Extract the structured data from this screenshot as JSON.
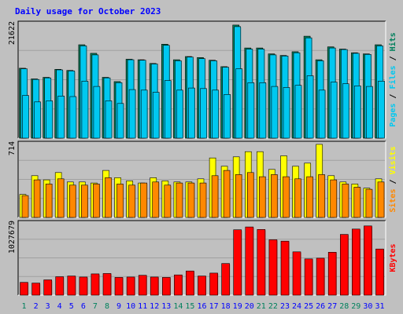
{
  "chart_data": {
    "type": "bar",
    "title": "Daily usage for October 2023",
    "categories": [
      "1",
      "2",
      "3",
      "4",
      "5",
      "6",
      "7",
      "8",
      "9",
      "10",
      "11",
      "12",
      "13",
      "14",
      "15",
      "16",
      "17",
      "18",
      "19",
      "20",
      "21",
      "22",
      "23",
      "24",
      "25",
      "26",
      "27",
      "28",
      "29",
      "30",
      "31"
    ],
    "weekend_days": [
      "1",
      "7",
      "8",
      "14",
      "15",
      "21",
      "22",
      "28",
      "29"
    ],
    "panels": [
      {
        "name": "top",
        "ymax": 21622,
        "ymax_label": "21622",
        "side_labels": [
          "Pages",
          "Files",
          "Hits"
        ],
        "series": [
          {
            "name": "Hits",
            "color": "#00805c",
            "values": [
              13100,
              11100,
              11400,
              12900,
              12700,
              17500,
              15900,
              11400,
              10600,
              14800,
              14700,
              14000,
              17600,
              14700,
              15300,
              15100,
              14600,
              13400,
              21200,
              16900,
              16900,
              15800,
              15500,
              16200,
              19100,
              14700,
              17100,
              16700,
              16000,
              15800,
              17500
            ]
          },
          {
            "name": "Files",
            "color": "#00c8f0",
            "values": [
              13000,
              11000,
              11300,
              12800,
              12600,
              17300,
              15600,
              11300,
              10400,
              14700,
              14600,
              13900,
              17400,
              14500,
              15200,
              14900,
              14500,
              13300,
              20900,
              16700,
              16700,
              15600,
              15400,
              16000,
              18800,
              14500,
              16900,
              16600,
              15900,
              15700,
              17300
            ]
          },
          {
            "name": "Pages",
            "color": "#00c8f0",
            "values": [
              8000,
              6800,
              7000,
              7900,
              7800,
              10700,
              9700,
              7000,
              6500,
              9100,
              9000,
              8600,
              10800,
              9000,
              9400,
              9300,
              9000,
              8200,
              13000,
              10400,
              10400,
              9700,
              9500,
              9900,
              11700,
              9000,
              10500,
              10200,
              9800,
              9700,
              10700
            ]
          }
        ]
      },
      {
        "name": "middle",
        "ymax": 714,
        "ymax_label": "714",
        "side_labels": [
          "Sites",
          "Visits"
        ],
        "series": [
          {
            "name": "Visits",
            "color": "#ffff00",
            "values": [
              220,
              400,
              360,
              430,
              340,
              340,
              330,
              450,
              380,
              350,
              330,
              380,
              350,
              340,
              340,
              370,
              570,
              490,
              580,
              630,
              630,
              460,
              590,
              490,
              520,
              700,
              400,
              340,
              320,
              280,
              370
            ]
          },
          {
            "name": "Sites",
            "color": "#ff8800",
            "values": [
              210,
              360,
              320,
              370,
              310,
              310,
              320,
              380,
              320,
              310,
              330,
              340,
              310,
              330,
              330,
              330,
              400,
              450,
              410,
              430,
              390,
              410,
              390,
              370,
              390,
              410,
              360,
              320,
              290,
              270,
              340
            ]
          }
        ]
      },
      {
        "name": "bottom",
        "ymax": 1027679,
        "ymax_label": "1027679",
        "side_labels": [
          "KBytes"
        ],
        "series": [
          {
            "name": "KBytes",
            "color": "#ff0000",
            "values": [
              180000,
              170000,
              215000,
              260000,
              270000,
              255000,
              300000,
              305000,
              250000,
              255000,
              280000,
              255000,
              250000,
              285000,
              340000,
              270000,
              310000,
              445000,
              920000,
              960000,
              925000,
              780000,
              760000,
              610000,
              510000,
              520000,
              605000,
              855000,
              930000,
              975000,
              650000
            ]
          }
        ]
      }
    ]
  },
  "colors": {
    "background": "#c0c0c0",
    "plot_area": "#c0c0c0",
    "title": "#0000ff",
    "weekday_label": "#0000ff",
    "weekend_label": "#00805c",
    "grid": "#a0a0a0"
  }
}
